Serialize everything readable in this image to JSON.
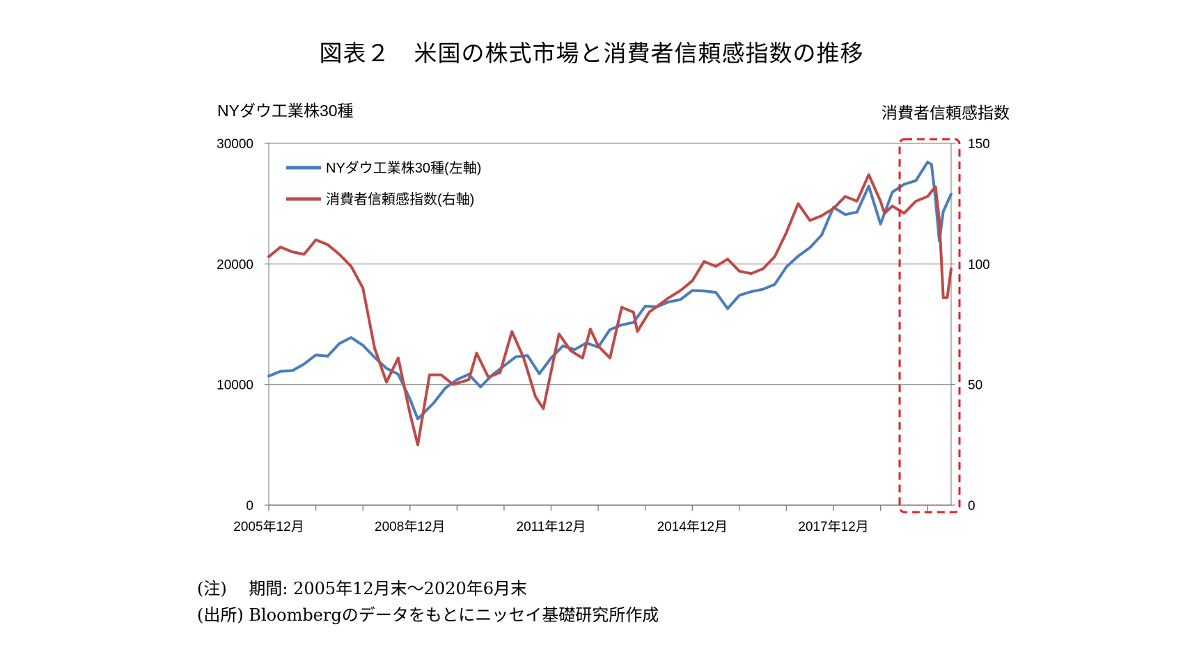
{
  "title": "図表２　米国の株式市場と消費者信頼感指数の推移",
  "notes": [
    "(注)　 期間: 2005年12月末～2020年6月末",
    "(出所) Bloombergのデータをもとにニッセイ基礎研究所作成"
  ],
  "chart_data": {
    "type": "line",
    "left_axis_title": "NYダウ工業株30種",
    "right_axis_title": "消費者信頼感指数",
    "ylim_left": [
      0,
      30000
    ],
    "ylim_right": [
      0,
      150
    ],
    "left_ticks": [
      0,
      10000,
      20000,
      30000
    ],
    "right_ticks": [
      0,
      50,
      100,
      150
    ],
    "x_tick_labels": [
      "2005年12月",
      "2008年12月",
      "2011年12月",
      "2014年12月",
      "2017年12月"
    ],
    "x_range": [
      "2005-12",
      "2020-06"
    ],
    "grid": "horizontal",
    "legend_position": "top-left",
    "highlight": {
      "from": "2019-07",
      "to": "2020-06",
      "style": "red dashed box"
    },
    "series": [
      {
        "name": "NYダウ工業株30種(左軸)",
        "axis": "left",
        "color": "#4a7ebb",
        "points": [
          [
            "2005-12",
            10700
          ],
          [
            "2006-03",
            11100
          ],
          [
            "2006-06",
            11150
          ],
          [
            "2006-09",
            11700
          ],
          [
            "2006-12",
            12450
          ],
          [
            "2007-03",
            12350
          ],
          [
            "2007-06",
            13400
          ],
          [
            "2007-09",
            13900
          ],
          [
            "2007-12",
            13250
          ],
          [
            "2008-03",
            12250
          ],
          [
            "2008-06",
            11350
          ],
          [
            "2008-09",
            10850
          ],
          [
            "2008-12",
            8800
          ],
          [
            "2009-02",
            7150
          ],
          [
            "2009-06",
            8450
          ],
          [
            "2009-09",
            9700
          ],
          [
            "2009-12",
            10400
          ],
          [
            "2010-03",
            10850
          ],
          [
            "2010-06",
            9800
          ],
          [
            "2010-09",
            10800
          ],
          [
            "2010-12",
            11550
          ],
          [
            "2011-03",
            12300
          ],
          [
            "2011-06",
            12400
          ],
          [
            "2011-09",
            10900
          ],
          [
            "2011-12",
            12200
          ],
          [
            "2012-03",
            13200
          ],
          [
            "2012-06",
            12900
          ],
          [
            "2012-09",
            13450
          ],
          [
            "2012-12",
            13100
          ],
          [
            "2013-03",
            14550
          ],
          [
            "2013-06",
            14950
          ],
          [
            "2013-09",
            15150
          ],
          [
            "2013-12",
            16500
          ],
          [
            "2014-03",
            16450
          ],
          [
            "2014-06",
            16850
          ],
          [
            "2014-09",
            17050
          ],
          [
            "2014-12",
            17800
          ],
          [
            "2015-03",
            17750
          ],
          [
            "2015-06",
            17650
          ],
          [
            "2015-09",
            16300
          ],
          [
            "2015-12",
            17400
          ],
          [
            "2016-03",
            17700
          ],
          [
            "2016-06",
            17900
          ],
          [
            "2016-09",
            18300
          ],
          [
            "2016-12",
            19750
          ],
          [
            "2017-03",
            20650
          ],
          [
            "2017-06",
            21350
          ],
          [
            "2017-09",
            22400
          ],
          [
            "2017-12",
            24700
          ],
          [
            "2018-03",
            24100
          ],
          [
            "2018-06",
            24300
          ],
          [
            "2018-09",
            26450
          ],
          [
            "2018-12",
            23300
          ],
          [
            "2019-03",
            25950
          ],
          [
            "2019-06",
            26600
          ],
          [
            "2019-09",
            26900
          ],
          [
            "2019-12",
            28450
          ],
          [
            "2020-01",
            28250
          ],
          [
            "2020-02",
            25400
          ],
          [
            "2020-03",
            21900
          ],
          [
            "2020-04",
            24350
          ],
          [
            "2020-06",
            25800
          ]
        ]
      },
      {
        "name": "消費者信頼感指数(右軸)",
        "axis": "right",
        "color": "#be4b48",
        "points": [
          [
            "2005-12",
            103
          ],
          [
            "2006-03",
            107
          ],
          [
            "2006-06",
            105
          ],
          [
            "2006-09",
            104
          ],
          [
            "2006-12",
            110
          ],
          [
            "2007-03",
            108
          ],
          [
            "2007-06",
            104
          ],
          [
            "2007-09",
            99
          ],
          [
            "2007-12",
            90
          ],
          [
            "2008-03",
            65
          ],
          [
            "2008-06",
            51
          ],
          [
            "2008-09",
            61
          ],
          [
            "2008-12",
            38
          ],
          [
            "2009-02",
            25
          ],
          [
            "2009-05",
            54
          ],
          [
            "2009-08",
            54
          ],
          [
            "2009-11",
            50
          ],
          [
            "2010-03",
            52
          ],
          [
            "2010-05",
            63
          ],
          [
            "2010-08",
            53
          ],
          [
            "2010-11",
            55
          ],
          [
            "2011-02",
            72
          ],
          [
            "2011-05",
            61
          ],
          [
            "2011-08",
            45
          ],
          [
            "2011-10",
            40
          ],
          [
            "2012-02",
            71
          ],
          [
            "2012-05",
            64
          ],
          [
            "2012-08",
            61
          ],
          [
            "2012-10",
            73
          ],
          [
            "2012-12",
            66
          ],
          [
            "2013-03",
            61
          ],
          [
            "2013-06",
            82
          ],
          [
            "2013-09",
            80
          ],
          [
            "2013-10",
            72
          ],
          [
            "2014-01",
            80
          ],
          [
            "2014-06",
            86
          ],
          [
            "2014-09",
            89
          ],
          [
            "2014-12",
            93
          ],
          [
            "2015-03",
            101
          ],
          [
            "2015-06",
            99
          ],
          [
            "2015-09",
            102
          ],
          [
            "2015-12",
            97
          ],
          [
            "2016-03",
            96
          ],
          [
            "2016-06",
            98
          ],
          [
            "2016-09",
            103
          ],
          [
            "2016-12",
            113
          ],
          [
            "2017-03",
            125
          ],
          [
            "2017-06",
            118
          ],
          [
            "2017-09",
            120
          ],
          [
            "2017-12",
            123
          ],
          [
            "2018-03",
            128
          ],
          [
            "2018-06",
            126
          ],
          [
            "2018-09",
            137
          ],
          [
            "2018-12",
            126
          ],
          [
            "2019-01",
            121
          ],
          [
            "2019-03",
            124
          ],
          [
            "2019-06",
            121
          ],
          [
            "2019-09",
            126
          ],
          [
            "2019-12",
            128
          ],
          [
            "2020-01",
            130
          ],
          [
            "2020-02",
            132
          ],
          [
            "2020-03",
            118
          ],
          [
            "2020-04",
            86
          ],
          [
            "2020-05",
            86
          ],
          [
            "2020-06",
            98
          ]
        ]
      }
    ]
  }
}
